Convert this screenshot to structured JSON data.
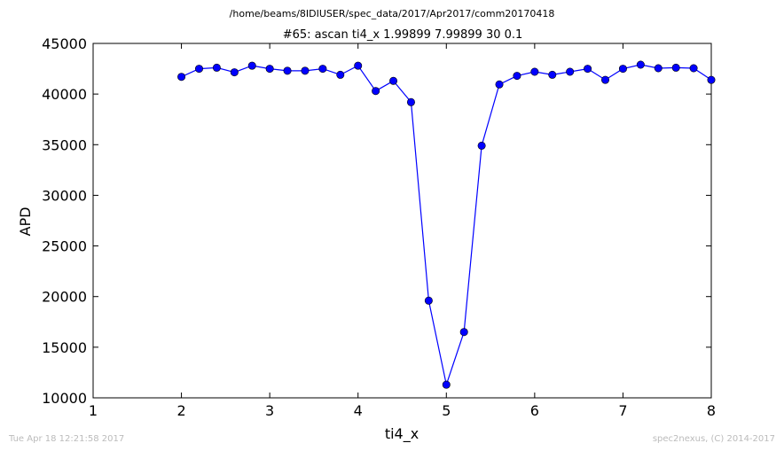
{
  "header": {
    "path": "/home/beams/8IDIUSER/spec_data/2017/Apr2017/comm20170418",
    "footer_left": "Tue Apr 18 12:21:58 2017",
    "footer_right": "spec2nexus, (C) 2014-2017"
  },
  "chart_data": {
    "type": "line",
    "title": "#65: ascan  ti4_x 1.99899 7.99899  30 0.1",
    "xlabel": "ti4_x",
    "ylabel": "APD",
    "xlim": [
      1,
      8
    ],
    "ylim": [
      10000,
      45000
    ],
    "x_ticks": [
      "1",
      "2",
      "3",
      "4",
      "5",
      "6",
      "7",
      "8"
    ],
    "y_ticks": [
      "10000",
      "15000",
      "20000",
      "25000",
      "30000",
      "35000",
      "40000",
      "45000"
    ],
    "grid": false,
    "colors": {
      "line": "#0000ff",
      "marker": "#0000ff"
    },
    "series": [
      {
        "x": [
          2.0,
          2.2,
          2.4,
          2.6,
          2.8,
          3.0,
          3.2,
          3.4,
          3.6,
          3.8,
          4.0,
          4.2,
          4.4,
          4.6,
          4.8,
          5.0,
          5.2,
          5.4,
          5.6,
          5.8,
          6.0,
          6.2,
          6.4,
          6.6,
          6.8,
          7.0,
          7.2,
          7.4,
          7.6,
          7.8,
          8.0
        ],
        "values": [
          41700,
          42500,
          42600,
          42150,
          42800,
          42500,
          42300,
          42300,
          42500,
          41900,
          42800,
          40300,
          41300,
          39200,
          19600,
          11300,
          16500,
          34900,
          40950,
          41800,
          42200,
          41900,
          42200,
          42500,
          41400,
          42500,
          42900,
          42550,
          42600,
          42550,
          41400
        ]
      }
    ]
  }
}
